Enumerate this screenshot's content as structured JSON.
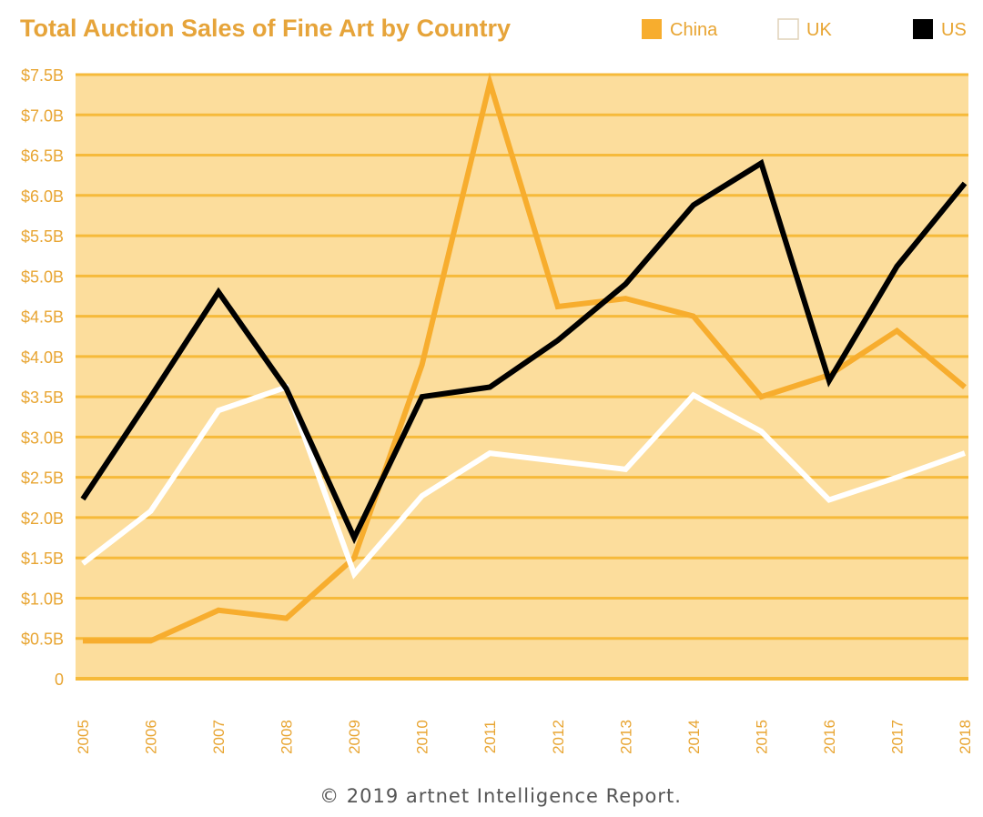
{
  "colors": {
    "title": "#E6A43A",
    "tick": "#E8A532",
    "plot_bg": "#FCDD9C",
    "grid": "#F6BA3A",
    "china": "#F7AD2E",
    "uk": "#FFFFFF",
    "us": "#000000",
    "footer": "#555555"
  },
  "chart_data": {
    "type": "line",
    "title": "Total Auction Sales of Fine Art by Country",
    "x": [
      "2005",
      "2006",
      "2007",
      "2008",
      "2009",
      "2010",
      "2011",
      "2012",
      "2013",
      "2014",
      "2015",
      "2016",
      "2017",
      "2018"
    ],
    "yticks": [
      "0",
      "$0.5B",
      "$1.0B",
      "$1.5B",
      "$2.0B",
      "$2.5B",
      "$3.0B",
      "$3.5B",
      "$4.0B",
      "$4.5B",
      "$5.0B",
      "$5.5B",
      "$6.0B",
      "$6.5B",
      "$7.0B",
      "$7.5B"
    ],
    "ylim": [
      0,
      7.5
    ],
    "ytick_step": 0.5,
    "grid": true,
    "legend_position": "top-right",
    "series": [
      {
        "name": "China",
        "values": [
          0.47,
          0.47,
          0.85,
          0.75,
          1.5,
          3.9,
          7.4,
          4.62,
          4.72,
          4.5,
          3.5,
          3.77,
          4.32,
          3.62
        ]
      },
      {
        "name": "UK",
        "values": [
          1.43,
          2.08,
          3.33,
          3.62,
          1.3,
          2.27,
          2.8,
          2.7,
          2.6,
          3.52,
          3.07,
          2.22,
          2.5,
          2.8
        ]
      },
      {
        "name": "US",
        "values": [
          2.23,
          3.5,
          4.8,
          3.6,
          1.75,
          3.5,
          3.62,
          4.2,
          4.9,
          5.88,
          6.4,
          3.7,
          5.12,
          6.15
        ]
      }
    ]
  },
  "footer": {
    "text": "© 2019 artnet Intelligence Report."
  }
}
